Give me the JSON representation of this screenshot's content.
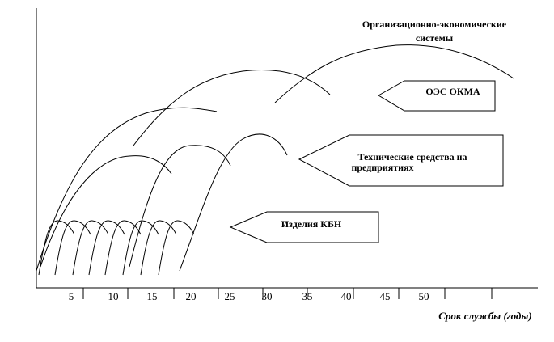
{
  "title": [
    "Организационно-экономические",
    "системы"
  ],
  "labels": {
    "oes": "ОЭС ОКМА",
    "tech": [
      "Технические  средства на",
      "предприятиях"
    ],
    "kbn": "Изделия КБН"
  },
  "axis": {
    "ticks": [
      5,
      10,
      15,
      20,
      25,
      30,
      35,
      40,
      45,
      50
    ],
    "label": "Срок службы (годы)"
  }
}
